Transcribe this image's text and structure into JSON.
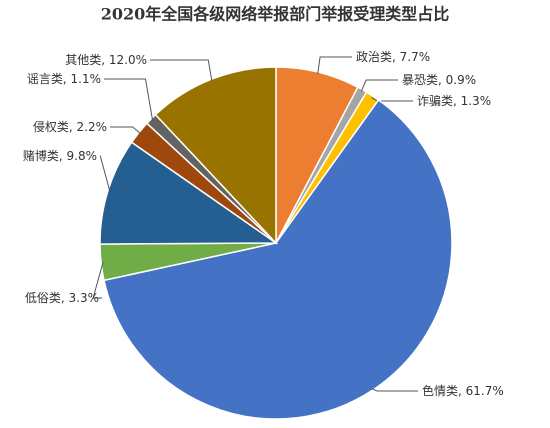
{
  "chart_data": {
    "type": "pie",
    "title": "2020年全国各级网络举报部门举报受理类型占比",
    "categories": [
      "政治类",
      "暴恐类",
      "诈骗类",
      "色情类",
      "低俗类",
      "赌博类",
      "侵权类",
      "谣言类",
      "其他类"
    ],
    "values": [
      7.7,
      0.9,
      1.3,
      61.7,
      3.3,
      9.8,
      2.2,
      1.1,
      12.0
    ],
    "value_labels": [
      "7.7%",
      "0.9%",
      "1.3%",
      "61.7%",
      "3.3%",
      "9.8%",
      "2.2%",
      "1.1%",
      "12.0%"
    ],
    "label_separator": ", ",
    "colors": [
      "#ED7D31",
      "#A5A5A5",
      "#FFC000",
      "#4472C4",
      "#70AD47",
      "#255E91",
      "#9E480E",
      "#636363",
      "#997300"
    ]
  }
}
